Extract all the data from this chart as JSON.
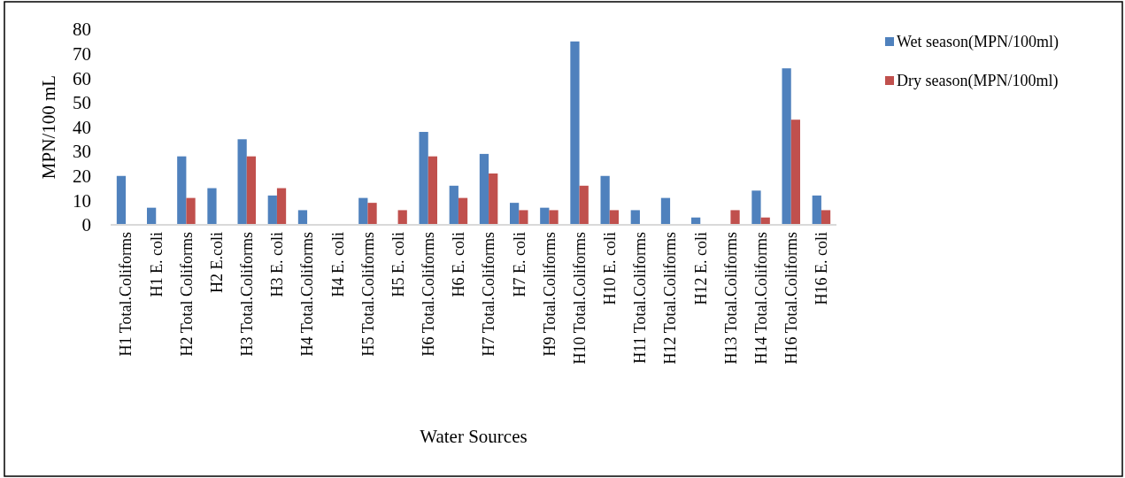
{
  "chart_data": {
    "type": "bar",
    "xlabel": "Water Sources",
    "ylabel": "MPN/100 mL",
    "categories": [
      "H1 Total.Coliforms",
      "H1 E. coli",
      "H2 Total Coliforms",
      "H2 E.coli",
      "H3 Total.Coliforms",
      "H3 E. coli",
      "H4 Total.Coliforms",
      "H4 E. coli",
      "H5 Total.Coliforms",
      "H5 E. coli",
      "H6 Total.Coliforms",
      "H6 E. coli",
      "H7 Total.Coliforms",
      "H7 E. coli",
      "H9 Total.Coliforms",
      "H10 Total.Coliforms",
      "H10 E. coli",
      "H11 Total.Coliforms",
      "H12 Total.Coliforms",
      "H12 E. coli",
      "H13 Total.Coliforms",
      "H14 Total.Coliforms",
      "H16 Total.Coliforms",
      "H16 E. coli"
    ],
    "series": [
      {
        "name": "Wet season(MPN/100ml)",
        "color": "#4f81bd",
        "values": [
          20,
          7,
          28,
          15,
          35,
          12,
          6,
          null,
          11,
          null,
          38,
          16,
          29,
          9,
          7,
          75,
          20,
          6,
          11,
          3,
          null,
          14,
          64,
          12
        ]
      },
      {
        "name": "Dry season(MPN/100ml)",
        "color": "#c0504d",
        "values": [
          null,
          null,
          11,
          null,
          28,
          15,
          null,
          null,
          9,
          6,
          28,
          11,
          21,
          6,
          6,
          16,
          6,
          null,
          null,
          null,
          6,
          3,
          43,
          6
        ]
      }
    ],
    "ylim": [
      0,
      80
    ],
    "yticks": [
      0,
      10,
      20,
      30,
      40,
      50,
      60,
      70,
      80
    ],
    "grid": false,
    "legend": "right"
  }
}
